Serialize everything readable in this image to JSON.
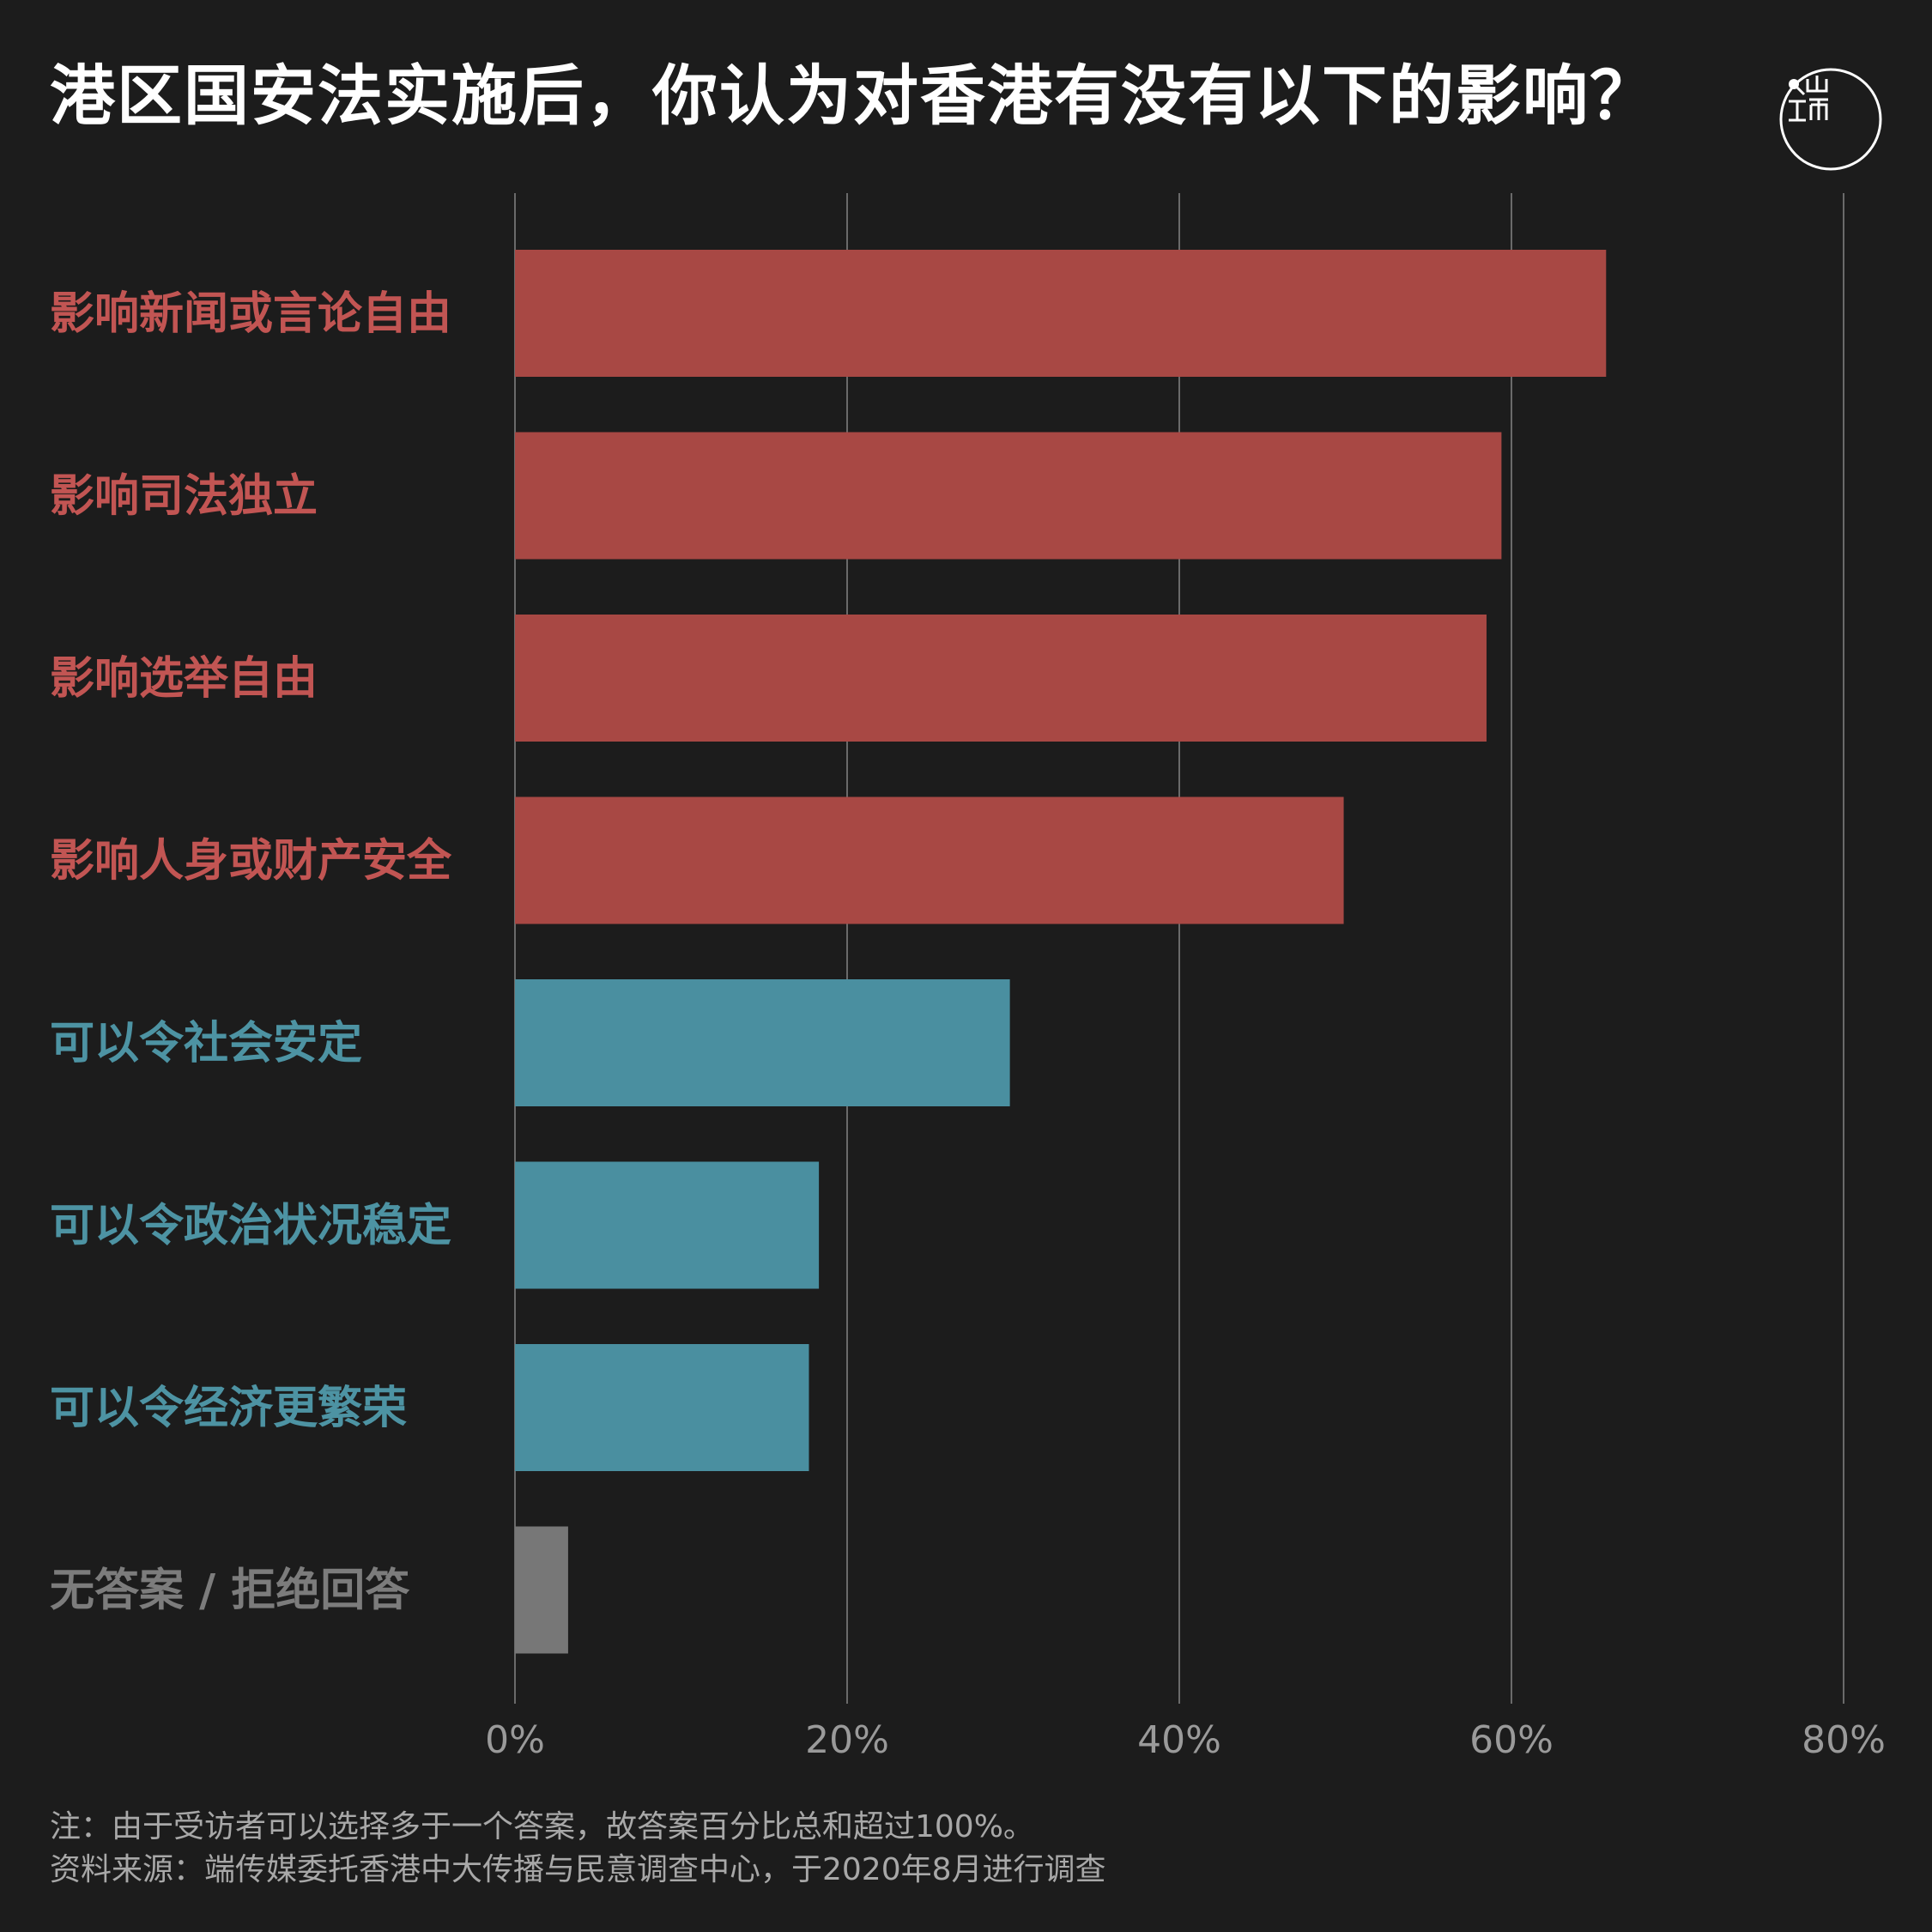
{
  "title": "港区国安法实施后，你认为对香港有没有以下的影响？",
  "logo": {
    "icon": "initium-logo-icon"
  },
  "chart_data": {
    "type": "bar",
    "orientation": "horizontal",
    "categories": [
      "影响新闻或言论自由",
      "影响司法独立",
      "影响选举自由",
      "影响人身或财产安全",
      "可以令社会安定",
      "可以令政治状况稳定",
      "可以令经济更繁荣",
      "无答案 / 拒绝回答"
    ],
    "values": [
      65.7,
      59.4,
      58.5,
      49.9,
      29.8,
      18.3,
      17.7,
      3.2
    ],
    "colors": [
      "#a84844",
      "#a84844",
      "#a84844",
      "#a84844",
      "#4a8fa0",
      "#4a8fa0",
      "#4a8fa0",
      "#777777"
    ],
    "label_colors": [
      "#c25553",
      "#c25553",
      "#c25553",
      "#c25553",
      "#4d93a3",
      "#4d93a3",
      "#4d93a3",
      "#7c7c7c"
    ],
    "xlim": [
      0,
      80
    ],
    "xticks": [
      0,
      20,
      40,
      60,
      80
    ],
    "tick_labels": [
      "0%",
      "20%",
      "40%",
      "60%",
      "80%"
    ],
    "grid": true
  },
  "footnotes": {
    "note": "注：由于受访者可以选择多于一个答案，故答案百分比总和超过100%。",
    "source": "资料来源：端传媒委托香港中大传播与民意调查中心，于2020年8月进行调查"
  }
}
